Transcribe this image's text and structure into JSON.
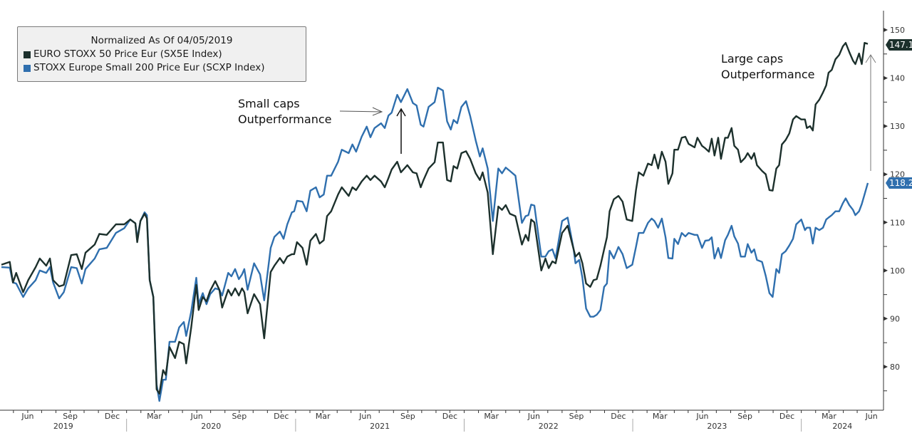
{
  "legend": {
    "title": "Normalized As Of 04/05/2019",
    "items": [
      {
        "label": "EURO STOXX 50 Price Eur (SX5E Index)",
        "color": "#1c302c"
      },
      {
        "label": "STOXX Europe Small 200 Price Eur (SCXP Index)",
        "color": "#2f6fae"
      }
    ]
  },
  "annotations": {
    "small_caps": {
      "line1": "Small caps",
      "line2": "Outperformance"
    },
    "large_caps": {
      "line1": "Large caps",
      "line2": "Outperformance"
    }
  },
  "last_values": {
    "sx5e": "147.1",
    "scxp": "118.2"
  },
  "chart_data": {
    "type": "line",
    "title": "",
    "xlabel": "",
    "ylabel": "",
    "ylim": [
      72,
      152
    ],
    "y_ticks": [
      80,
      90,
      100,
      110,
      120,
      130,
      140,
      150
    ],
    "y_axis_position": "right",
    "grid": false,
    "legend_position": "top-left",
    "x_ticks": [
      {
        "date": "2019-06-01",
        "label": "Jun"
      },
      {
        "date": "2019-09-01",
        "label": "Sep"
      },
      {
        "date": "2019-12-01",
        "label": "Dec"
      },
      {
        "date": "2020-03-01",
        "label": "Mar"
      },
      {
        "date": "2020-06-01",
        "label": "Jun"
      },
      {
        "date": "2020-09-01",
        "label": "Sep"
      },
      {
        "date": "2020-12-01",
        "label": "Dec"
      },
      {
        "date": "2021-03-01",
        "label": "Mar"
      },
      {
        "date": "2021-06-01",
        "label": "Jun"
      },
      {
        "date": "2021-09-01",
        "label": "Sep"
      },
      {
        "date": "2021-12-01",
        "label": "Dec"
      },
      {
        "date": "2022-03-01",
        "label": "Mar"
      },
      {
        "date": "2022-06-01",
        "label": "Jun"
      },
      {
        "date": "2022-09-01",
        "label": "Sep"
      },
      {
        "date": "2022-12-01",
        "label": "Dec"
      },
      {
        "date": "2023-03-01",
        "label": "Mar"
      },
      {
        "date": "2023-06-01",
        "label": "Jun"
      },
      {
        "date": "2023-09-01",
        "label": "Sep"
      },
      {
        "date": "2023-12-01",
        "label": "Dec"
      },
      {
        "date": "2024-03-01",
        "label": "Mar"
      },
      {
        "date": "2024-06-01",
        "label": "Jun"
      }
    ],
    "year_labels": [
      "2019",
      "2020",
      "2021",
      "2022",
      "2023",
      "2024"
    ],
    "x": [
      "2019-04-05",
      "2019-04-23",
      "2019-04-30",
      "2019-05-07",
      "2019-05-22",
      "2019-06-02",
      "2019-06-18",
      "2019-06-27",
      "2019-07-11",
      "2019-07-19",
      "2019-07-26",
      "2019-08-08",
      "2019-08-18",
      "2019-09-03",
      "2019-09-15",
      "2019-09-26",
      "2019-10-04",
      "2019-10-24",
      "2019-11-03",
      "2019-11-19",
      "2019-12-09",
      "2019-12-27",
      "2020-01-09",
      "2020-01-20",
      "2020-01-24",
      "2020-01-31",
      "2020-02-09",
      "2020-02-14",
      "2020-02-20",
      "2020-02-28",
      "2020-03-06",
      "2020-03-12",
      "2020-03-20",
      "2020-03-26",
      "2020-04-03",
      "2020-04-15",
      "2020-04-24",
      "2020-05-04",
      "2020-05-09",
      "2020-05-20",
      "2020-05-31",
      "2020-06-05",
      "2020-06-14",
      "2020-06-22",
      "2020-06-30",
      "2020-07-11",
      "2020-07-20",
      "2020-07-26",
      "2020-08-08",
      "2020-08-15",
      "2020-08-23",
      "2020-08-31",
      "2020-09-07",
      "2020-09-12",
      "2020-09-19",
      "2020-10-03",
      "2020-10-16",
      "2020-10-25",
      "2020-11-08",
      "2020-11-16",
      "2020-11-28",
      "2020-12-06",
      "2020-12-14",
      "2020-12-24",
      "2020-12-29",
      "2021-01-04",
      "2021-01-16",
      "2021-01-25",
      "2021-02-02",
      "2021-02-14",
      "2021-02-22",
      "2021-03-03",
      "2021-03-10",
      "2021-03-19",
      "2021-04-03",
      "2021-04-11",
      "2021-04-26",
      "2021-05-04",
      "2021-05-12",
      "2021-05-24",
      "2021-06-04",
      "2021-06-12",
      "2021-06-21",
      "2021-07-05",
      "2021-07-13",
      "2021-07-21",
      "2021-07-28",
      "2021-08-09",
      "2021-08-17",
      "2021-08-31",
      "2021-09-12",
      "2021-09-20",
      "2021-09-29",
      "2021-10-05",
      "2021-10-16",
      "2021-10-29",
      "2021-11-05",
      "2021-11-16",
      "2021-11-25",
      "2021-12-03",
      "2021-12-09",
      "2021-12-17",
      "2021-12-26",
      "2022-01-05",
      "2022-01-14",
      "2022-01-26",
      "2022-02-04",
      "2022-02-10",
      "2022-02-21",
      "2022-03-04",
      "2022-03-16",
      "2022-03-24",
      "2022-04-01",
      "2022-04-10",
      "2022-04-22",
      "2022-05-06",
      "2022-05-14",
      "2022-05-20",
      "2022-05-26",
      "2022-06-02",
      "2022-06-17",
      "2022-06-26",
      "2022-07-03",
      "2022-07-11",
      "2022-07-18",
      "2022-08-01",
      "2022-08-13",
      "2022-08-26",
      "2022-08-30",
      "2022-09-07",
      "2022-09-14",
      "2022-09-22",
      "2022-10-01",
      "2022-10-08",
      "2022-10-15",
      "2022-10-23",
      "2022-10-31",
      "2022-11-06",
      "2022-11-12",
      "2022-11-21",
      "2022-12-01",
      "2022-12-10",
      "2022-12-19",
      "2022-12-31",
      "2023-01-08",
      "2023-01-14",
      "2023-01-24",
      "2023-02-03",
      "2023-02-11",
      "2023-02-17",
      "2023-02-25",
      "2023-03-05",
      "2023-03-13",
      "2023-03-19",
      "2023-03-28",
      "2023-04-01",
      "2023-04-09",
      "2023-04-17",
      "2023-04-25",
      "2023-05-02",
      "2023-05-15",
      "2023-05-21",
      "2023-05-31",
      "2023-06-07",
      "2023-06-15",
      "2023-06-21",
      "2023-06-27",
      "2023-07-05",
      "2023-07-11",
      "2023-07-20",
      "2023-07-26",
      "2023-08-03",
      "2023-08-09",
      "2023-08-17",
      "2023-08-23",
      "2023-09-01",
      "2023-09-07",
      "2023-09-15",
      "2023-09-21",
      "2023-09-27",
      "2023-10-08",
      "2023-10-16",
      "2023-10-24",
      "2023-10-31",
      "2023-11-08",
      "2023-11-14",
      "2023-11-20",
      "2023-11-28",
      "2023-12-06",
      "2023-12-14",
      "2023-12-21",
      "2024-01-01",
      "2024-01-09",
      "2024-01-13",
      "2024-01-20",
      "2024-01-26",
      "2024-02-01",
      "2024-02-09",
      "2024-02-17",
      "2024-02-24",
      "2024-02-29",
      "2024-03-07",
      "2024-03-15",
      "2024-03-23",
      "2024-03-31",
      "2024-04-06",
      "2024-04-14",
      "2024-04-22",
      "2024-04-27",
      "2024-05-05",
      "2024-05-11",
      "2024-05-17",
      "2024-05-24"
    ],
    "series": [
      {
        "name": "EURO STOXX 50 Price Eur (SX5E Index)",
        "color": "#1c302c",
        "values": [
          101.2,
          101.8,
          97.5,
          99.5,
          95.5,
          98,
          100.7,
          102.5,
          101,
          102.5,
          98,
          96.7,
          97,
          103.2,
          103.4,
          100.3,
          103.7,
          105.4,
          107.6,
          107.4,
          109.6,
          109.6,
          110.6,
          109.8,
          105.9,
          110.3,
          111.8,
          110.8,
          98,
          94.5,
          75.3,
          74.4,
          79.3,
          78.3,
          84.1,
          81.8,
          85.2,
          84.7,
          80.7,
          88.2,
          97,
          91.8,
          94.5,
          93.6,
          95.8,
          97.8,
          96,
          92.3,
          96,
          94.8,
          96.3,
          94.8,
          96.3,
          95.5,
          91.1,
          95.1,
          93,
          85.9,
          99.7,
          101,
          102.6,
          101.5,
          102.9,
          103.4,
          103.4,
          105.9,
          104.7,
          101.2,
          106.2,
          107.6,
          105.6,
          106.3,
          111.3,
          112.3,
          115.8,
          117.3,
          115.5,
          117.3,
          116.7,
          118.5,
          119.7,
          118.8,
          119.7,
          118.5,
          117.3,
          119.2,
          121,
          122.6,
          120.4,
          121.9,
          120.4,
          120.2,
          117.3,
          118.8,
          121.2,
          122.5,
          126.6,
          126.6,
          118.8,
          118.5,
          121.7,
          121.2,
          124.4,
          124.8,
          123.2,
          120.2,
          118.8,
          120.4,
          116.2,
          103.4,
          113.3,
          112.6,
          113.6,
          111.8,
          111.3,
          105.4,
          107.4,
          106.2,
          110.6,
          110,
          100,
          102.5,
          100.5,
          101.9,
          101.5,
          107.8,
          109.3,
          104.4,
          102.9,
          103.7,
          101.5,
          97.3,
          96.6,
          98,
          98.2,
          101,
          104.4,
          106.9,
          112.3,
          114.8,
          115.5,
          114.3,
          110.6,
          110.3,
          116.7,
          120.4,
          119.7,
          122.2,
          121.9,
          124.1,
          121.2,
          124.7,
          122.6,
          118,
          120.2,
          125.1,
          125.1,
          127.6,
          127.8,
          126.3,
          125.6,
          127.6,
          125.9,
          125.4,
          124.7,
          127.4,
          123.9,
          127.6,
          123.2,
          127.6,
          127.6,
          129.6,
          125.9,
          125.1,
          122.5,
          123.4,
          124.4,
          123.2,
          124.4,
          121.9,
          120.7,
          120,
          116.7,
          116.6,
          121.2,
          121.9,
          126.2,
          127.1,
          128.5,
          131.4,
          132.1,
          131.4,
          131.4,
          129.6,
          130,
          129.1,
          134.5,
          135.5,
          137,
          138.5,
          141.1,
          141.7,
          143.9,
          144.8,
          146.6,
          147.3,
          145.4,
          143.6,
          142.9,
          145.1,
          142.9,
          147.3,
          147.1
        ]
      },
      {
        "name": "STOXX Europe Small 200 Price Eur (SCXP Index)",
        "color": "#2f6fae",
        "values": [
          100.7,
          100.6,
          97.5,
          97.3,
          94.5,
          96.3,
          98,
          100,
          99.5,
          100.7,
          97.5,
          94.2,
          95.5,
          100.7,
          100.5,
          97.3,
          100.3,
          102.5,
          104.4,
          104.7,
          107.8,
          108.8,
          110.6,
          109.8,
          106.6,
          110.3,
          112.1,
          111.5,
          98,
          94.5,
          76.3,
          72.9,
          77.3,
          77.3,
          85.2,
          85.2,
          88.2,
          89.3,
          86.4,
          91.5,
          98.5,
          93,
          95.3,
          93,
          95.1,
          96.3,
          96,
          94.8,
          99.5,
          98.8,
          100.3,
          98.2,
          99.2,
          100.3,
          96,
          101.5,
          99.2,
          93.8,
          104.7,
          107,
          108.1,
          106.6,
          109.6,
          112.1,
          112.3,
          114.5,
          114.3,
          112.3,
          116.6,
          117.3,
          115.2,
          115.8,
          119.7,
          119.7,
          122.6,
          125.1,
          124.4,
          126.2,
          124.7,
          127.8,
          129.9,
          127.7,
          129.6,
          130.6,
          129.6,
          132.2,
          132.8,
          136.5,
          135,
          137.7,
          134.8,
          134.3,
          130.3,
          129.9,
          134,
          135,
          138,
          137.4,
          131,
          129.3,
          131.3,
          130.6,
          134,
          135.2,
          132.1,
          127,
          123.7,
          125.4,
          121.2,
          110.3,
          121.2,
          120.2,
          121.4,
          120.7,
          119.7,
          109.9,
          111.3,
          111.5,
          113.7,
          113.5,
          102.9,
          102.9,
          104,
          104.4,
          102.5,
          110.3,
          111,
          104.4,
          101.5,
          102.2,
          98.5,
          92.1,
          90.4,
          90.4,
          90.8,
          91.8,
          96.6,
          97.3,
          104.1,
          102.5,
          104.9,
          103.4,
          100.5,
          101.2,
          104.9,
          107.8,
          107.8,
          109.9,
          110.8,
          110.3,
          108.9,
          110.8,
          106.9,
          102.6,
          102.5,
          106.6,
          105.5,
          107.8,
          107.1,
          107.8,
          107.4,
          107.4,
          104.7,
          106.2,
          106.3,
          106.9,
          102.5,
          104.7,
          102.6,
          106.3,
          107.4,
          109.3,
          107.1,
          105.6,
          102.9,
          102.9,
          105.5,
          103.7,
          104.4,
          102.2,
          101.8,
          98.9,
          95.3,
          94.5,
          100.3,
          99.5,
          103.4,
          104,
          105.2,
          106.6,
          109.6,
          110.6,
          108.4,
          108.9,
          108.9,
          105.6,
          108.9,
          108.4,
          108.9,
          110.6,
          111,
          111.5,
          112.3,
          112.3,
          114,
          115,
          113.6,
          112.6,
          111.5,
          112.3,
          113.8,
          115.8,
          118.2
        ]
      }
    ]
  }
}
